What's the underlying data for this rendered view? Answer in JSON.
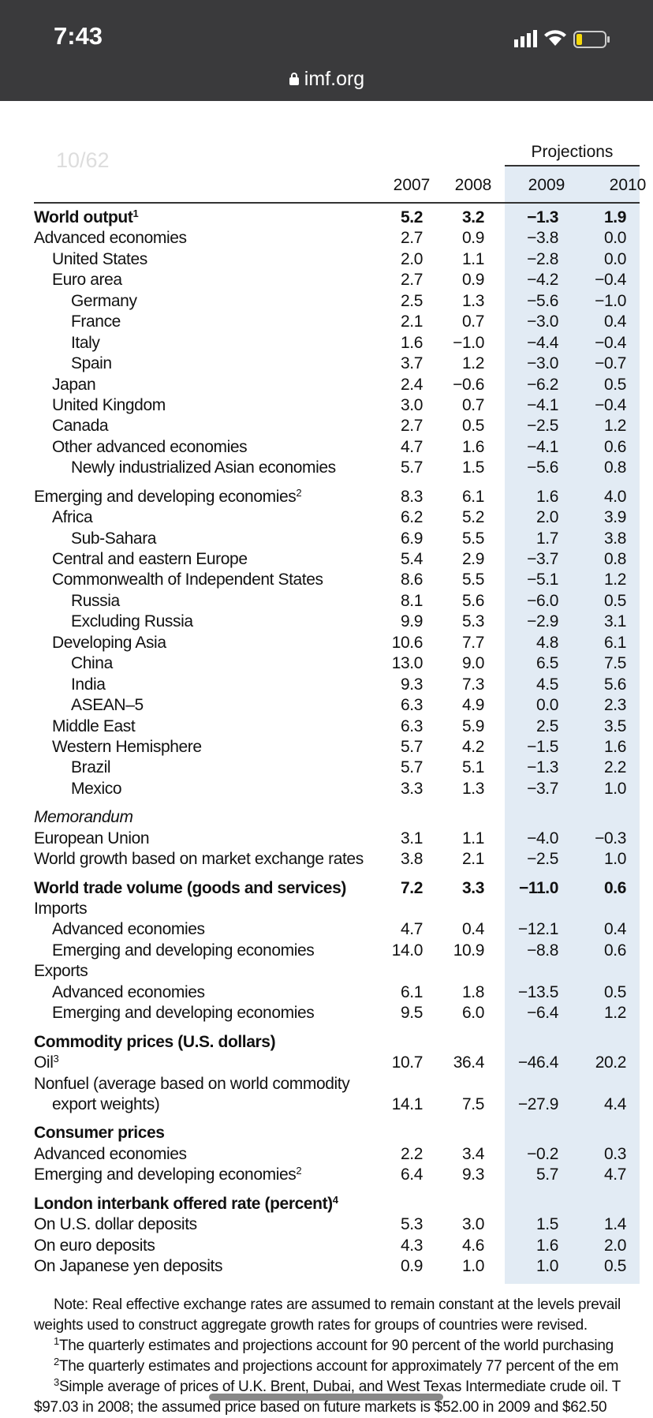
{
  "status_bar": {
    "time": "7:43"
  },
  "browser": {
    "url": "imf.org"
  },
  "page_indicator": "10/62",
  "table": {
    "projections_label": "Projections",
    "years": [
      "2007",
      "2008",
      "2009",
      "2010"
    ],
    "sections": [
      {
        "rows": [
          {
            "label": "World output",
            "sup": "1",
            "bold": true,
            "level": 0,
            "values": [
              "5.2",
              "3.2",
              "−1.3",
              "1.9"
            ]
          },
          {
            "label": "Advanced economies",
            "level": 0,
            "values": [
              "2.7",
              "0.9",
              "−3.8",
              "0.0"
            ]
          },
          {
            "label": "United States",
            "level": 1,
            "values": [
              "2.0",
              "1.1",
              "−2.8",
              "0.0"
            ]
          },
          {
            "label": "Euro area",
            "level": 1,
            "values": [
              "2.7",
              "0.9",
              "−4.2",
              "−0.4"
            ]
          },
          {
            "label": "Germany",
            "level": 2,
            "values": [
              "2.5",
              "1.3",
              "−5.6",
              "−1.0"
            ]
          },
          {
            "label": "France",
            "level": 2,
            "values": [
              "2.1",
              "0.7",
              "−3.0",
              "0.4"
            ]
          },
          {
            "label": "Italy",
            "level": 2,
            "values": [
              "1.6",
              "−1.0",
              "−4.4",
              "−0.4"
            ]
          },
          {
            "label": "Spain",
            "level": 2,
            "values": [
              "3.7",
              "1.2",
              "−3.0",
              "−0.7"
            ]
          },
          {
            "label": "Japan",
            "level": 1,
            "values": [
              "2.4",
              "−0.6",
              "−6.2",
              "0.5"
            ]
          },
          {
            "label": "United Kingdom",
            "level": 1,
            "values": [
              "3.0",
              "0.7",
              "−4.1",
              "−0.4"
            ]
          },
          {
            "label": "Canada",
            "level": 1,
            "values": [
              "2.7",
              "0.5",
              "−2.5",
              "1.2"
            ]
          },
          {
            "label": "Other advanced economies",
            "level": 1,
            "values": [
              "4.7",
              "1.6",
              "−4.1",
              "0.6"
            ]
          },
          {
            "label": "Newly industrialized Asian economies",
            "level": 2,
            "values": [
              "5.7",
              "1.5",
              "−5.6",
              "0.8"
            ]
          }
        ]
      },
      {
        "rows": [
          {
            "label": "Emerging and developing economies",
            "sup": "2",
            "level": 0,
            "values": [
              "8.3",
              "6.1",
              "1.6",
              "4.0"
            ]
          },
          {
            "label": "Africa",
            "level": 1,
            "values": [
              "6.2",
              "5.2",
              "2.0",
              "3.9"
            ]
          },
          {
            "label": "Sub-Sahara",
            "level": 2,
            "values": [
              "6.9",
              "5.5",
              "1.7",
              "3.8"
            ]
          },
          {
            "label": "Central and eastern Europe",
            "level": 1,
            "values": [
              "5.4",
              "2.9",
              "−3.7",
              "0.8"
            ]
          },
          {
            "label": "Commonwealth of Independent States",
            "level": 1,
            "values": [
              "8.6",
              "5.5",
              "−5.1",
              "1.2"
            ]
          },
          {
            "label": "Russia",
            "level": 2,
            "values": [
              "8.1",
              "5.6",
              "−6.0",
              "0.5"
            ]
          },
          {
            "label": "Excluding Russia",
            "level": 2,
            "values": [
              "9.9",
              "5.3",
              "−2.9",
              "3.1"
            ]
          },
          {
            "label": "Developing Asia",
            "level": 1,
            "values": [
              "10.6",
              "7.7",
              "4.8",
              "6.1"
            ]
          },
          {
            "label": "China",
            "level": 2,
            "values": [
              "13.0",
              "9.0",
              "6.5",
              "7.5"
            ]
          },
          {
            "label": "India",
            "level": 2,
            "values": [
              "9.3",
              "7.3",
              "4.5",
              "5.6"
            ]
          },
          {
            "label": "ASEAN–5",
            "level": 2,
            "values": [
              "6.3",
              "4.9",
              "0.0",
              "2.3"
            ]
          },
          {
            "label": "Middle East",
            "level": 1,
            "values": [
              "6.3",
              "5.9",
              "2.5",
              "3.5"
            ]
          },
          {
            "label": "Western Hemisphere",
            "level": 1,
            "values": [
              "5.7",
              "4.2",
              "−1.5",
              "1.6"
            ]
          },
          {
            "label": "Brazil",
            "level": 2,
            "values": [
              "5.7",
              "5.1",
              "−1.3",
              "2.2"
            ]
          },
          {
            "label": "Mexico",
            "level": 2,
            "values": [
              "3.3",
              "1.3",
              "−3.7",
              "1.0"
            ]
          }
        ]
      },
      {
        "rows": [
          {
            "label": "Memorandum",
            "italic": true,
            "level": 0
          },
          {
            "label": "European Union",
            "level": 0,
            "values": [
              "3.1",
              "1.1",
              "−4.0",
              "−0.3"
            ]
          },
          {
            "label": "World growth based on market exchange rates",
            "level": 0,
            "values": [
              "3.8",
              "2.1",
              "−2.5",
              "1.0"
            ]
          }
        ]
      },
      {
        "rows": [
          {
            "label": "World trade volume (goods and services)",
            "bold": true,
            "level": 0,
            "values": [
              "7.2",
              "3.3",
              "−11.0",
              "0.6"
            ]
          },
          {
            "label": "Imports",
            "level": 0
          },
          {
            "label": "Advanced economies",
            "level": 1,
            "values": [
              "4.7",
              "0.4",
              "−12.1",
              "0.4"
            ]
          },
          {
            "label": "Emerging and developing economies",
            "level": 1,
            "values": [
              "14.0",
              "10.9",
              "−8.8",
              "0.6"
            ]
          },
          {
            "label": "Exports",
            "level": 0
          },
          {
            "label": "Advanced economies",
            "level": 1,
            "values": [
              "6.1",
              "1.8",
              "−13.5",
              "0.5"
            ]
          },
          {
            "label": "Emerging and developing economies",
            "level": 1,
            "values": [
              "9.5",
              "6.0",
              "−6.4",
              "1.2"
            ]
          }
        ]
      },
      {
        "rows": [
          {
            "label": "Commodity prices (U.S. dollars)",
            "bold": true,
            "level": 0
          },
          {
            "label": "Oil",
            "sup": "3",
            "level": 0,
            "values": [
              "10.7",
              "36.4",
              "−46.4",
              "20.2"
            ]
          },
          {
            "label": "Nonfuel (average based on world commodity",
            "level": 0
          },
          {
            "label": "export weights)",
            "level": 1,
            "values": [
              "14.1",
              "7.5",
              "−27.9",
              "4.4"
            ]
          }
        ]
      },
      {
        "rows": [
          {
            "label": "Consumer prices",
            "bold": true,
            "level": 0
          },
          {
            "label": "Advanced economies",
            "level": 0,
            "values": [
              "2.2",
              "3.4",
              "−0.2",
              "0.3"
            ]
          },
          {
            "label": "Emerging and developing economies",
            "sup": "2",
            "level": 0,
            "values": [
              "6.4",
              "9.3",
              "5.7",
              "4.7"
            ]
          }
        ]
      },
      {
        "rows": [
          {
            "label": "London interbank offered rate (percent)",
            "sup": "4",
            "bold": true,
            "level": 0
          },
          {
            "label": "On U.S. dollar deposits",
            "level": 0,
            "values": [
              "5.3",
              "3.0",
              "1.5",
              "1.4"
            ]
          },
          {
            "label": "On euro deposits",
            "level": 0,
            "values": [
              "4.3",
              "4.6",
              "1.6",
              "2.0"
            ]
          },
          {
            "label": "On Japanese yen deposits",
            "level": 0,
            "values": [
              "0.9",
              "1.0",
              "1.0",
              "0.5"
            ]
          }
        ]
      }
    ]
  },
  "notes": [
    {
      "text": "Note: Real effective exchange rates are assumed to remain constant at the levels prevail",
      "level": 1
    },
    {
      "text": "weights used to construct aggregate growth rates for groups of countries were revised.",
      "level": 0
    },
    {
      "sup": "1",
      "text": "The quarterly estimates and projections account for 90 percent of the world purchasing",
      "level": 1
    },
    {
      "sup": "2",
      "text": "The quarterly estimates and projections account for approximately 77 percent of the em",
      "level": 1
    },
    {
      "sup": "3",
      "text": "Simple average of prices of U.K. Brent, Dubai, and West Texas Intermediate crude oil. T",
      "level": 1
    },
    {
      "text": "$97.03 in 2008; the assumed price based on future markets is $52.00 in 2009 and $62.50",
      "level": 0
    }
  ]
}
